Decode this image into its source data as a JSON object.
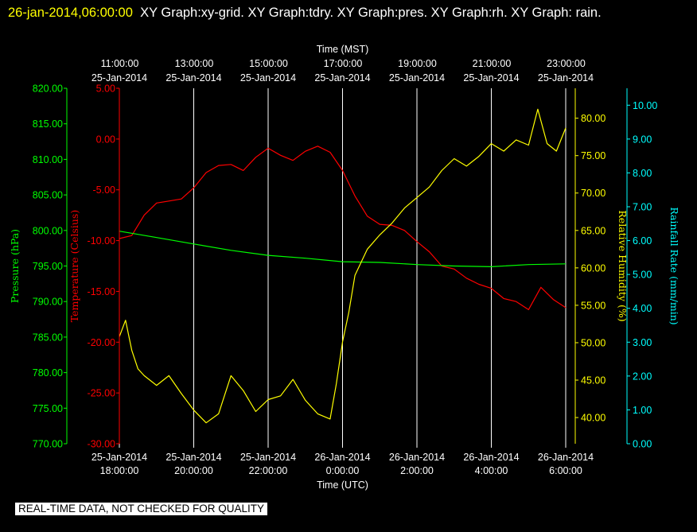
{
  "header": {
    "timestamp": "26-jan-2014,06:00:00",
    "graphs": "XY Graph:xy-grid.  XY Graph:tdry.  XY Graph:pres.  XY Graph:rh.  XY Graph: rain."
  },
  "notice": "REAL-TIME DATA, NOT CHECKED FOR QUALITY",
  "colors": {
    "background": "#000000",
    "grid": "#ffffff",
    "pressure": "#00ff00",
    "temperature": "#ff0000",
    "humidity": "#ffff00",
    "rain": "#00ffff"
  },
  "chart_data": {
    "type": "line",
    "grid": true,
    "x_top": {
      "label": "Time (MST)",
      "ticks": [
        {
          "time": "11:00:00",
          "date": "25-Jan-2014"
        },
        {
          "time": "13:00:00",
          "date": "25-Jan-2014"
        },
        {
          "time": "15:00:00",
          "date": "25-Jan-2014"
        },
        {
          "time": "17:00:00",
          "date": "25-Jan-2014"
        },
        {
          "time": "19:00:00",
          "date": "25-Jan-2014"
        },
        {
          "time": "21:00:00",
          "date": "25-Jan-2014"
        },
        {
          "time": "23:00:00",
          "date": "25-Jan-2014"
        }
      ]
    },
    "x_bottom": {
      "label": "Time (UTC)",
      "range": [
        "2014-01-25 18:00:00",
        "2014-01-26 06:00:00"
      ],
      "ticks": [
        {
          "date": "25-Jan-2014",
          "time": "18:00:00"
        },
        {
          "date": "25-Jan-2014",
          "time": "20:00:00"
        },
        {
          "date": "25-Jan-2014",
          "time": "22:00:00"
        },
        {
          "date": "26-Jan-2014",
          "time": "0:00:00"
        },
        {
          "date": "26-Jan-2014",
          "time": "2:00:00"
        },
        {
          "date": "26-Jan-2014",
          "time": "4:00:00"
        },
        {
          "date": "26-Jan-2014",
          "time": "6:00:00"
        }
      ]
    },
    "axes": {
      "pressure": {
        "label": "Pressure (hPa)",
        "range": [
          770,
          820
        ],
        "ticks": [
          "770.00",
          "775.00",
          "780.00",
          "785.00",
          "790.00",
          "795.00",
          "800.00",
          "805.00",
          "810.00",
          "815.00",
          "820.00"
        ]
      },
      "temperature": {
        "label": "Temperature (Celsius)",
        "range": [
          -30,
          5
        ],
        "ticks": [
          "-30.00",
          "-25.00",
          "-20.00",
          "-15.00",
          "-10.00",
          "-5.00",
          "0.00",
          "5.00"
        ]
      },
      "humidity": {
        "label": "Relative Humidity (%)",
        "range": [
          36.5,
          84
        ],
        "ticks": [
          "40.00",
          "45.00",
          "50.00",
          "55.00",
          "60.00",
          "65.00",
          "70.00",
          "75.00",
          "80.00"
        ]
      },
      "rain": {
        "label": "Rainfall Rate (mm/min)",
        "range": [
          0,
          10.5
        ],
        "ticks": [
          "0.00",
          "1.00",
          "2.00",
          "3.00",
          "4.00",
          "5.00",
          "6.00",
          "7.00",
          "8.00",
          "9.00",
          "10.00"
        ]
      }
    },
    "series": [
      {
        "name": "tdry",
        "axis": "temperature",
        "unit": "Celsius",
        "points": [
          [
            "2014-01-25 18:00",
            -9.8
          ],
          [
            "2014-01-25 18:20",
            -9.5
          ],
          [
            "2014-01-25 18:40",
            -7.5
          ],
          [
            "2014-01-25 19:00",
            -6.3
          ],
          [
            "2014-01-25 19:20",
            -6.1
          ],
          [
            "2014-01-25 19:40",
            -5.9
          ],
          [
            "2014-01-25 20:00",
            -4.8
          ],
          [
            "2014-01-25 20:20",
            -3.3
          ],
          [
            "2014-01-25 20:40",
            -2.6
          ],
          [
            "2014-01-25 21:00",
            -2.5
          ],
          [
            "2014-01-25 21:20",
            -3.1
          ],
          [
            "2014-01-25 21:40",
            -1.8
          ],
          [
            "2014-01-25 22:00",
            -0.9
          ],
          [
            "2014-01-25 22:20",
            -1.6
          ],
          [
            "2014-01-25 22:40",
            -2.1
          ],
          [
            "2014-01-25 23:00",
            -1.2
          ],
          [
            "2014-01-25 23:20",
            -0.7
          ],
          [
            "2014-01-25 23:40",
            -1.3
          ],
          [
            "2014-01-26 00:00",
            -3.1
          ],
          [
            "2014-01-26 00:20",
            -5.6
          ],
          [
            "2014-01-26 00:40",
            -7.6
          ],
          [
            "2014-01-26 01:00",
            -8.4
          ],
          [
            "2014-01-26 01:20",
            -8.5
          ],
          [
            "2014-01-26 01:40",
            -9.0
          ],
          [
            "2014-01-26 02:00",
            -10.1
          ],
          [
            "2014-01-26 02:20",
            -11.1
          ],
          [
            "2014-01-26 02:40",
            -12.5
          ],
          [
            "2014-01-26 03:00",
            -12.8
          ],
          [
            "2014-01-26 03:20",
            -13.7
          ],
          [
            "2014-01-26 03:40",
            -14.3
          ],
          [
            "2014-01-26 04:00",
            -14.7
          ],
          [
            "2014-01-26 04:20",
            -15.7
          ],
          [
            "2014-01-26 04:40",
            -16.0
          ],
          [
            "2014-01-26 05:00",
            -16.8
          ],
          [
            "2014-01-26 05:20",
            -14.6
          ],
          [
            "2014-01-26 05:40",
            -15.8
          ],
          [
            "2014-01-26 06:00",
            -16.6
          ]
        ]
      },
      {
        "name": "pres",
        "axis": "pressure",
        "unit": "hPa",
        "points": [
          [
            "2014-01-25 18:00",
            799.9
          ],
          [
            "2014-01-25 19:00",
            799.0
          ],
          [
            "2014-01-25 20:00",
            798.1
          ],
          [
            "2014-01-25 21:00",
            797.2
          ],
          [
            "2014-01-25 22:00",
            796.5
          ],
          [
            "2014-01-25 23:00",
            796.1
          ],
          [
            "2014-01-26 00:00",
            795.6
          ],
          [
            "2014-01-26 01:00",
            795.5
          ],
          [
            "2014-01-26 02:00",
            795.2
          ],
          [
            "2014-01-26 03:00",
            795.0
          ],
          [
            "2014-01-26 04:00",
            794.9
          ],
          [
            "2014-01-26 05:00",
            795.2
          ],
          [
            "2014-01-26 06:00",
            795.3
          ]
        ]
      },
      {
        "name": "rh",
        "axis": "humidity",
        "unit": "%",
        "points": [
          [
            "2014-01-25 18:00",
            50.8
          ],
          [
            "2014-01-25 18:10",
            53.0
          ],
          [
            "2014-01-25 18:20",
            49.0
          ],
          [
            "2014-01-25 18:30",
            46.5
          ],
          [
            "2014-01-25 18:40",
            45.6
          ],
          [
            "2014-01-25 19:00",
            44.3
          ],
          [
            "2014-01-25 19:20",
            45.6
          ],
          [
            "2014-01-25 19:40",
            43.2
          ],
          [
            "2014-01-25 20:00",
            41.0
          ],
          [
            "2014-01-25 20:20",
            39.3
          ],
          [
            "2014-01-25 20:40",
            40.5
          ],
          [
            "2014-01-25 21:00",
            45.6
          ],
          [
            "2014-01-25 21:20",
            43.6
          ],
          [
            "2014-01-25 21:40",
            40.8
          ],
          [
            "2014-01-25 22:00",
            42.4
          ],
          [
            "2014-01-25 22:20",
            42.9
          ],
          [
            "2014-01-25 22:40",
            45.1
          ],
          [
            "2014-01-25 23:00",
            42.3
          ],
          [
            "2014-01-25 23:20",
            40.5
          ],
          [
            "2014-01-25 23:40",
            39.8
          ],
          [
            "2014-01-25 23:50",
            44.5
          ],
          [
            "2014-01-26 00:00",
            50.1
          ],
          [
            "2014-01-26 00:10",
            54.0
          ],
          [
            "2014-01-26 00:20",
            59.0
          ],
          [
            "2014-01-26 00:40",
            62.5
          ],
          [
            "2014-01-26 01:00",
            64.4
          ],
          [
            "2014-01-26 01:20",
            66.0
          ],
          [
            "2014-01-26 01:40",
            68.0
          ],
          [
            "2014-01-26 02:00",
            69.4
          ],
          [
            "2014-01-26 02:20",
            70.8
          ],
          [
            "2014-01-26 02:40",
            73.0
          ],
          [
            "2014-01-26 03:00",
            74.6
          ],
          [
            "2014-01-26 03:20",
            73.6
          ],
          [
            "2014-01-26 03:40",
            74.9
          ],
          [
            "2014-01-26 04:00",
            76.6
          ],
          [
            "2014-01-26 04:20",
            75.6
          ],
          [
            "2014-01-26 04:40",
            77.1
          ],
          [
            "2014-01-26 05:00",
            76.4
          ],
          [
            "2014-01-26 05:15",
            81.2
          ],
          [
            "2014-01-26 05:30",
            76.6
          ],
          [
            "2014-01-26 05:45",
            75.6
          ],
          [
            "2014-01-26 06:00",
            78.7
          ]
        ]
      },
      {
        "name": "rain",
        "axis": "rain",
        "unit": "mm/min",
        "points": []
      }
    ]
  }
}
